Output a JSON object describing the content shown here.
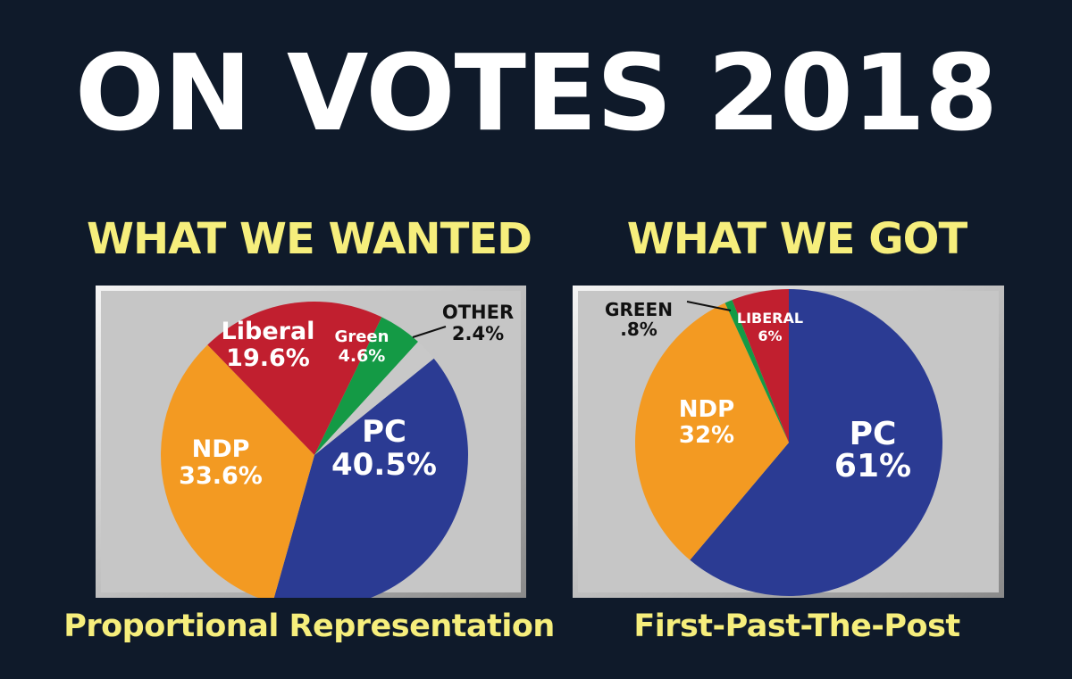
{
  "title": "ON VOTES 2018",
  "chart_data": [
    {
      "type": "pie",
      "title": "WHAT WE WANTED",
      "caption": "Proportional Representation",
      "slices": [
        {
          "name": "PC",
          "value": 40.5,
          "label": "40.5%",
          "color": "#2b3b93"
        },
        {
          "name": "NDP",
          "value": 33.6,
          "label": "33.6%",
          "color": "#f39a22"
        },
        {
          "name": "Liberal",
          "value": 19.6,
          "label": "19.6%",
          "color": "#c11f2f"
        },
        {
          "name": "Green",
          "value": 4.6,
          "label": "4.6%",
          "color": "#149a45"
        },
        {
          "name": "OTHER",
          "value": 2.4,
          "label": "2.4%",
          "color": "#c8c8c8"
        }
      ]
    },
    {
      "type": "pie",
      "title": "WHAT WE GOT",
      "caption": "First-Past-The-Post",
      "slices": [
        {
          "name": "PC",
          "value": 61,
          "label": "61%",
          "color": "#2b3b93"
        },
        {
          "name": "NDP",
          "value": 32,
          "label": "32%",
          "color": "#f39a22"
        },
        {
          "name": "GREEN",
          "value": 0.8,
          "label": ".8%",
          "color": "#149a45"
        },
        {
          "name": "LIBERAL",
          "value": 6,
          "label": "6%",
          "color": "#c11f2f"
        }
      ]
    }
  ]
}
